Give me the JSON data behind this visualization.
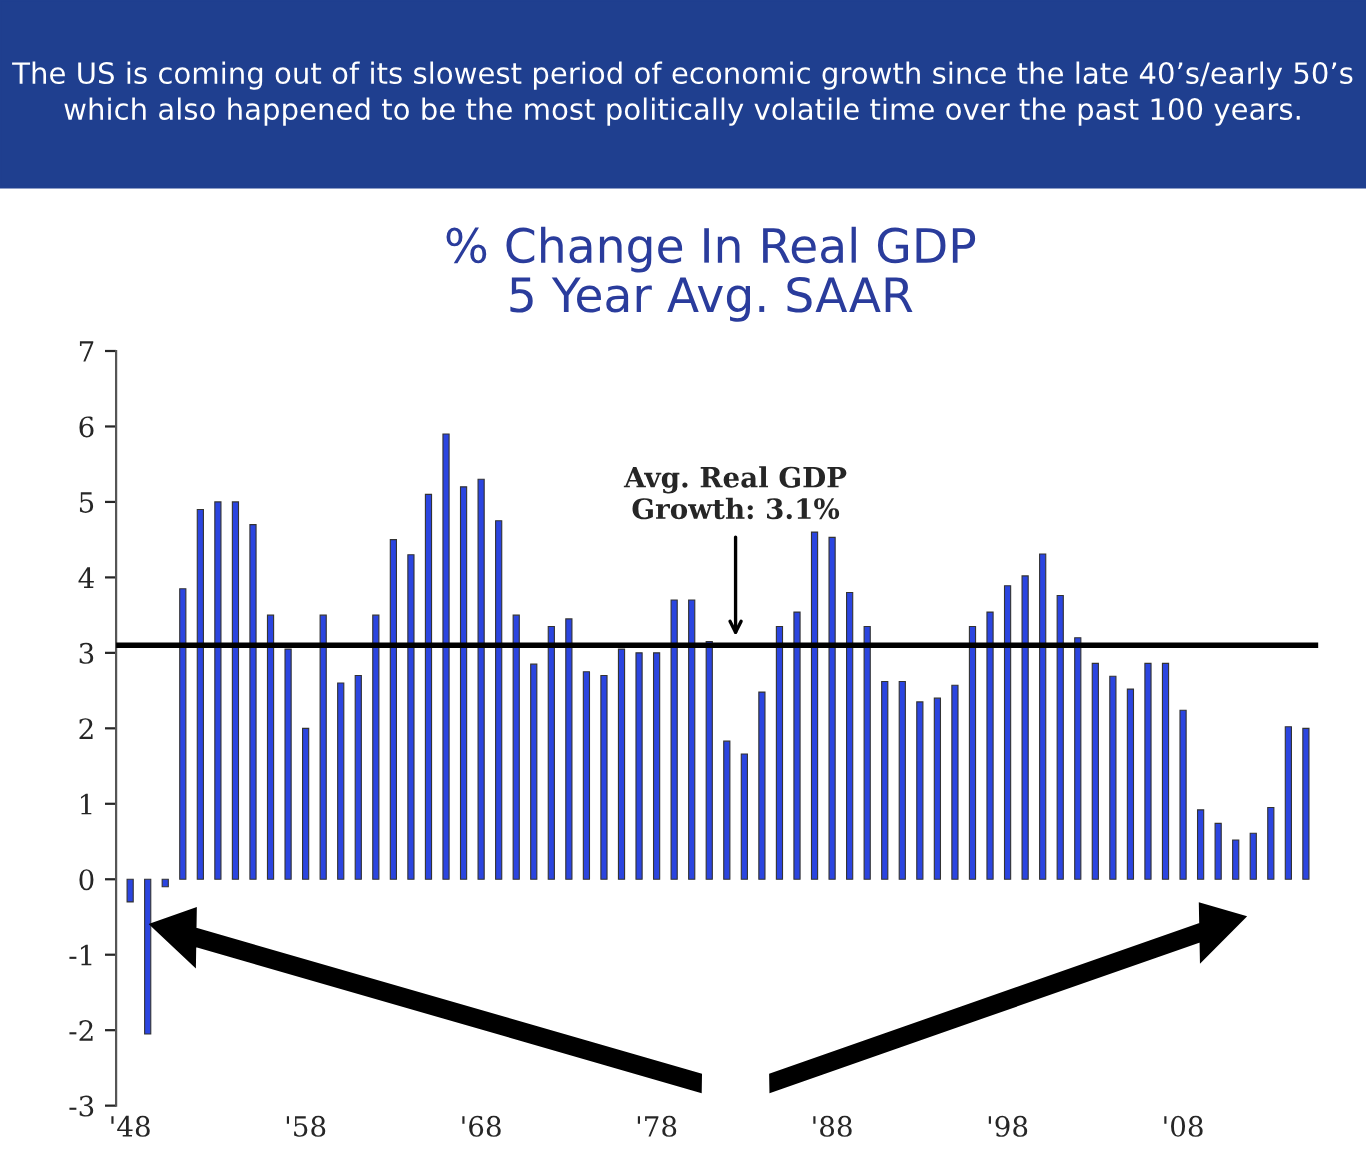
{
  "chart_data": {
    "type": "bar",
    "title": "% Change In Real GDP\n5 Year Avg. SAAR",
    "annotations": [
      "The US is coming out of its slowest period of economic growth since the late 40’s/early 50’s which also happened to be the most politically volatile time over the past 100 years."
    ],
    "categories": [
      "'48",
      null,
      null,
      null,
      null,
      null,
      null,
      null,
      null,
      null,
      "'58",
      null,
      null,
      null,
      null,
      null,
      null,
      null,
      null,
      null,
      "'68",
      null,
      null,
      null,
      null,
      null,
      null,
      null,
      null,
      null,
      "'78",
      null,
      null,
      null,
      null,
      null,
      null,
      null,
      null,
      null,
      "'88",
      null,
      null,
      null,
      null,
      null,
      null,
      null,
      null,
      null,
      "'98",
      null,
      null,
      null,
      null,
      null,
      null,
      null,
      null,
      null,
      "'08",
      null,
      null,
      null,
      null,
      null,
      null,
      null
    ],
    "values": [
      -0.3,
      -2.05,
      -0.1,
      3.85,
      4.9,
      5.0,
      5.0,
      4.7,
      3.5,
      3.05,
      2.0,
      3.5,
      2.6,
      2.7,
      3.5,
      4.5,
      4.3,
      5.1,
      5.9,
      5.2,
      5.3,
      4.75,
      3.5,
      2.85,
      3.35,
      3.45,
      2.75,
      2.7,
      3.05,
      3.0,
      3.0,
      3.7,
      3.7,
      3.15,
      1.83,
      1.66,
      2.48,
      3.35,
      3.54,
      4.6,
      4.53,
      3.8,
      3.35,
      2.62,
      2.62,
      2.35,
      2.4,
      2.57,
      3.35,
      3.54,
      3.89,
      4.02,
      4.31,
      3.76,
      3.2,
      2.86,
      2.69,
      2.52,
      2.86,
      2.86,
      2.24,
      0.92,
      0.74,
      0.52,
      0.61,
      0.95,
      2.02,
      2.0
    ],
    "color": "#2b45e0",
    "ylim": [
      -3,
      7
    ],
    "yticks": [
      -3,
      -2,
      -1,
      0,
      1,
      2,
      3,
      4,
      5,
      6,
      7
    ],
    "ref_lines": [
      {
        "axis": "y",
        "value": 3.1,
        "label": "Avg. Real GDP\nGrowth: 3.1%",
        "color": "#000000"
      }
    ],
    "grid": false,
    "legend": false
  }
}
